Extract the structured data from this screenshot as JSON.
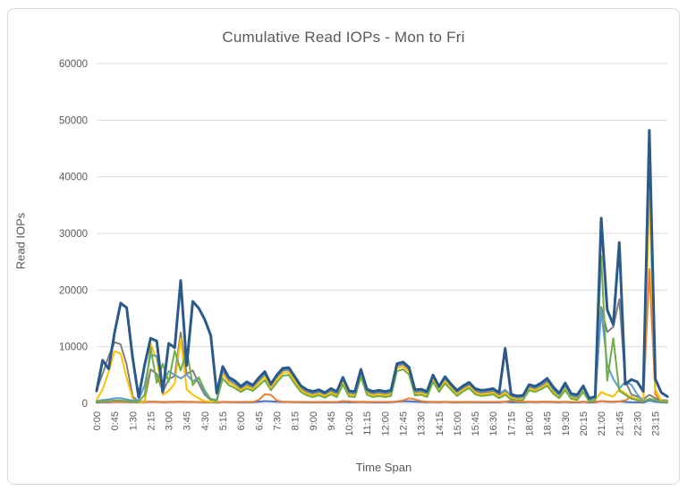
{
  "chart_data": {
    "type": "line",
    "title": "Cumulative Read IOPs - Mon to Fri",
    "xlabel": "Time Span",
    "ylabel": "Read IOPs",
    "ylim": [
      0,
      60000
    ],
    "ytick_interval": 10000,
    "yticks": [
      0,
      10000,
      20000,
      30000,
      40000,
      50000,
      60000
    ],
    "grid": "horizontal-only",
    "gridline_color": "#d9d9d9",
    "legend": "none",
    "axis_text_color": "#595959",
    "x_interval_minutes": 15,
    "x_label_every_n_points": 3,
    "x_tick_labels": [
      "0:00",
      "0:45",
      "1:30",
      "2:15",
      "3:00",
      "3:45",
      "4:30",
      "5:15",
      "6:00",
      "6:45",
      "7:30",
      "8:15",
      "9:00",
      "9:45",
      "10:30",
      "11:15",
      "12:00",
      "12:45",
      "13:30",
      "14:15",
      "15:00",
      "15:45",
      "16:30",
      "17:15",
      "18:00",
      "18:45",
      "19:30",
      "20:15",
      "21:00",
      "21:45",
      "22:30",
      "23:15"
    ],
    "categories": [
      "0:00",
      "0:15",
      "0:30",
      "0:45",
      "1:00",
      "1:15",
      "1:30",
      "1:45",
      "2:00",
      "2:15",
      "2:30",
      "2:45",
      "3:00",
      "3:15",
      "3:30",
      "3:45",
      "4:00",
      "4:15",
      "4:30",
      "4:45",
      "5:00",
      "5:15",
      "5:30",
      "5:45",
      "6:00",
      "6:15",
      "6:30",
      "6:45",
      "7:00",
      "7:15",
      "7:30",
      "7:45",
      "8:00",
      "8:15",
      "8:30",
      "8:45",
      "9:00",
      "9:15",
      "9:30",
      "9:45",
      "10:00",
      "10:15",
      "10:30",
      "10:45",
      "11:00",
      "11:15",
      "11:30",
      "11:45",
      "12:00",
      "12:15",
      "12:30",
      "12:45",
      "13:00",
      "13:15",
      "13:30",
      "13:45",
      "14:00",
      "14:15",
      "14:30",
      "14:45",
      "15:00",
      "15:15",
      "15:30",
      "15:45",
      "16:00",
      "16:15",
      "16:30",
      "16:45",
      "17:00",
      "17:15",
      "17:30",
      "17:45",
      "18:00",
      "18:15",
      "18:30",
      "18:45",
      "19:00",
      "19:15",
      "19:30",
      "19:45",
      "20:00",
      "20:15",
      "20:30",
      "20:45",
      "21:00",
      "21:15",
      "21:30",
      "21:45",
      "22:00",
      "22:15",
      "22:30",
      "22:45",
      "23:00",
      "23:15",
      "23:30",
      "23:45"
    ],
    "series": [
      {
        "name": "series-1-royal-blue",
        "color": "#4472C4",
        "width": 2,
        "values": [
          150,
          200,
          180,
          250,
          250,
          220,
          200,
          180,
          200,
          300,
          280,
          200,
          250,
          250,
          300,
          250,
          250,
          220,
          200,
          180,
          150,
          250,
          220,
          200,
          200,
          220,
          200,
          300,
          400,
          350,
          300,
          250,
          250,
          220,
          200,
          180,
          180,
          200,
          180,
          200,
          180,
          250,
          200,
          180,
          250,
          200,
          180,
          200,
          180,
          200,
          300,
          350,
          380,
          300,
          250,
          200,
          250,
          200,
          250,
          200,
          180,
          200,
          220,
          200,
          180,
          180,
          200,
          180,
          300,
          200,
          180,
          180,
          250,
          220,
          250,
          280,
          220,
          180,
          250,
          180,
          160,
          250,
          150,
          180,
          400,
          300,
          250,
          350,
          250,
          200,
          200,
          150,
          500,
          300,
          200,
          150
        ]
      },
      {
        "name": "series-2-orange",
        "color": "#ED7D31",
        "width": 2,
        "values": [
          250,
          260,
          250,
          270,
          260,
          250,
          240,
          250,
          260,
          300,
          280,
          250,
          260,
          270,
          300,
          260,
          250,
          240,
          230,
          230,
          220,
          260,
          250,
          240,
          250,
          260,
          250,
          600,
          1600,
          1500,
          500,
          300,
          280,
          260,
          250,
          240,
          240,
          250,
          240,
          250,
          240,
          400,
          350,
          260,
          300,
          260,
          250,
          250,
          250,
          260,
          350,
          500,
          900,
          700,
          400,
          300,
          280,
          260,
          270,
          260,
          250,
          260,
          270,
          260,
          250,
          250,
          260,
          250,
          300,
          500,
          300,
          280,
          300,
          280,
          300,
          320,
          280,
          250,
          300,
          250,
          240,
          300,
          230,
          250,
          400,
          350,
          300,
          350,
          500,
          1200,
          500,
          300,
          23700,
          1600,
          300,
          250
        ]
      },
      {
        "name": "series-3-gray",
        "color": "#7F7F7F",
        "width": 2,
        "values": [
          2400,
          5200,
          8300,
          10800,
          10400,
          6800,
          1200,
          300,
          400,
          6000,
          5200,
          2000,
          4300,
          4800,
          12500,
          5200,
          5800,
          3500,
          1500,
          600,
          500,
          5800,
          4100,
          3500,
          2600,
          3300,
          2800,
          4000,
          5100,
          3000,
          4600,
          5800,
          5900,
          4300,
          2700,
          2000,
          1700,
          2000,
          1500,
          2200,
          1700,
          4200,
          1800,
          1700,
          5600,
          2100,
          1700,
          1900,
          1700,
          1900,
          6600,
          6900,
          6000,
          2000,
          2100,
          1700,
          4600,
          2600,
          4300,
          3000,
          1900,
          2700,
          3300,
          2200,
          1900,
          2000,
          2200,
          1500,
          2200,
          1200,
          900,
          1000,
          2900,
          2600,
          3100,
          3900,
          2300,
          1300,
          2900,
          1200,
          1000,
          2600,
          500,
          800,
          17000,
          12600,
          13500,
          18400,
          4000,
          1600,
          1200,
          700,
          1500,
          900,
          600,
          500
        ]
      },
      {
        "name": "series-4-gold",
        "color": "#FFC000",
        "width": 2,
        "values": [
          600,
          2500,
          5500,
          9200,
          8800,
          4500,
          800,
          200,
          300,
          10500,
          7800,
          1500,
          2200,
          3500,
          11500,
          2500,
          1500,
          900,
          400,
          300,
          250,
          5200,
          3700,
          3100,
          2300,
          3000,
          2500,
          3600,
          4700,
          2700,
          4200,
          5400,
          5500,
          3900,
          2400,
          1700,
          1400,
          1700,
          1300,
          1900,
          1400,
          3800,
          1500,
          1400,
          5200,
          1800,
          1400,
          1600,
          1400,
          1600,
          6200,
          6500,
          5600,
          1700,
          1800,
          1400,
          4200,
          2300,
          3900,
          2700,
          1600,
          2400,
          3000,
          1900,
          1600,
          1700,
          1900,
          1200,
          1900,
          1000,
          700,
          800,
          2600,
          2300,
          2800,
          3500,
          2000,
          1100,
          2600,
          1000,
          800,
          2300,
          400,
          600,
          2000,
          1500,
          1200,
          2500,
          1800,
          1000,
          800,
          500,
          36500,
          2500,
          400,
          350
        ]
      },
      {
        "name": "series-5-light-blue",
        "color": "#5B9BD5",
        "width": 2,
        "values": [
          400,
          600,
          700,
          900,
          900,
          700,
          500,
          600,
          3200,
          8600,
          8300,
          3300,
          5700,
          5000,
          4400,
          5100,
          3900,
          4500,
          1900,
          800,
          600,
          6000,
          4300,
          3700,
          2800,
          3500,
          3000,
          4200,
          5300,
          3200,
          4800,
          6000,
          6100,
          4500,
          2900,
          2200,
          1900,
          2200,
          1700,
          2400,
          1900,
          4400,
          2000,
          1900,
          5800,
          2300,
          1900,
          2100,
          1900,
          2100,
          6800,
          7100,
          6200,
          2200,
          2300,
          1900,
          4800,
          2800,
          4500,
          3200,
          2100,
          2900,
          3500,
          2400,
          2100,
          2200,
          2400,
          1700,
          2400,
          1400,
          1100,
          1200,
          3100,
          2800,
          3300,
          4100,
          2500,
          1500,
          3100,
          1400,
          1200,
          2800,
          600,
          1000,
          16500,
          6800,
          4300,
          2600,
          3800,
          3300,
          1600,
          400,
          700,
          500,
          300,
          250
        ]
      },
      {
        "name": "series-6-green",
        "color": "#70AD47",
        "width": 2,
        "values": [
          300,
          400,
          400,
          500,
          500,
          400,
          300,
          300,
          1500,
          9800,
          3600,
          7000,
          3800,
          9300,
          5800,
          9400,
          3200,
          4600,
          2300,
          700,
          400,
          4400,
          3200,
          2700,
          2000,
          2600,
          2200,
          3100,
          4100,
          2300,
          3700,
          4900,
          5000,
          3400,
          2000,
          1400,
          1100,
          1400,
          1000,
          1600,
          1100,
          3300,
          1200,
          1100,
          4700,
          1500,
          1100,
          1300,
          1100,
          1300,
          5700,
          6000,
          5100,
          1400,
          1500,
          1100,
          3800,
          2000,
          3500,
          2400,
          1300,
          2100,
          2700,
          1600,
          1300,
          1400,
          1600,
          900,
          1500,
          700,
          500,
          600,
          2300,
          2000,
          2500,
          3100,
          1700,
          900,
          2300,
          800,
          600,
          2000,
          300,
          500,
          26000,
          4000,
          11500,
          2200,
          1500,
          800,
          600,
          400,
          800,
          600,
          300,
          250
        ]
      },
      {
        "name": "series-7-navy",
        "color": "#2B5A8A",
        "width": 3,
        "values": [
          2200,
          7600,
          6100,
          12500,
          17700,
          16900,
          8000,
          1100,
          6800,
          11500,
          11000,
          2000,
          10600,
          9800,
          21700,
          6700,
          18000,
          16800,
          14800,
          12000,
          1800,
          6500,
          4600,
          4000,
          3000,
          3800,
          3200,
          4500,
          5600,
          3400,
          5000,
          6200,
          6300,
          4700,
          3100,
          2400,
          2100,
          2400,
          1900,
          2600,
          2100,
          4600,
          2200,
          2100,
          6000,
          2500,
          2100,
          2300,
          2100,
          2300,
          7000,
          7300,
          6400,
          2400,
          2500,
          2100,
          5000,
          3000,
          4700,
          3400,
          2300,
          3100,
          3700,
          2600,
          2300,
          2400,
          2600,
          1900,
          9700,
          1600,
          1300,
          1400,
          3300,
          3000,
          3600,
          4400,
          2900,
          1800,
          3600,
          1700,
          1500,
          3100,
          900,
          1200,
          32700,
          16500,
          13900,
          28400,
          3400,
          4200,
          3800,
          2100,
          48200,
          4300,
          1900,
          1200
        ]
      }
    ]
  }
}
